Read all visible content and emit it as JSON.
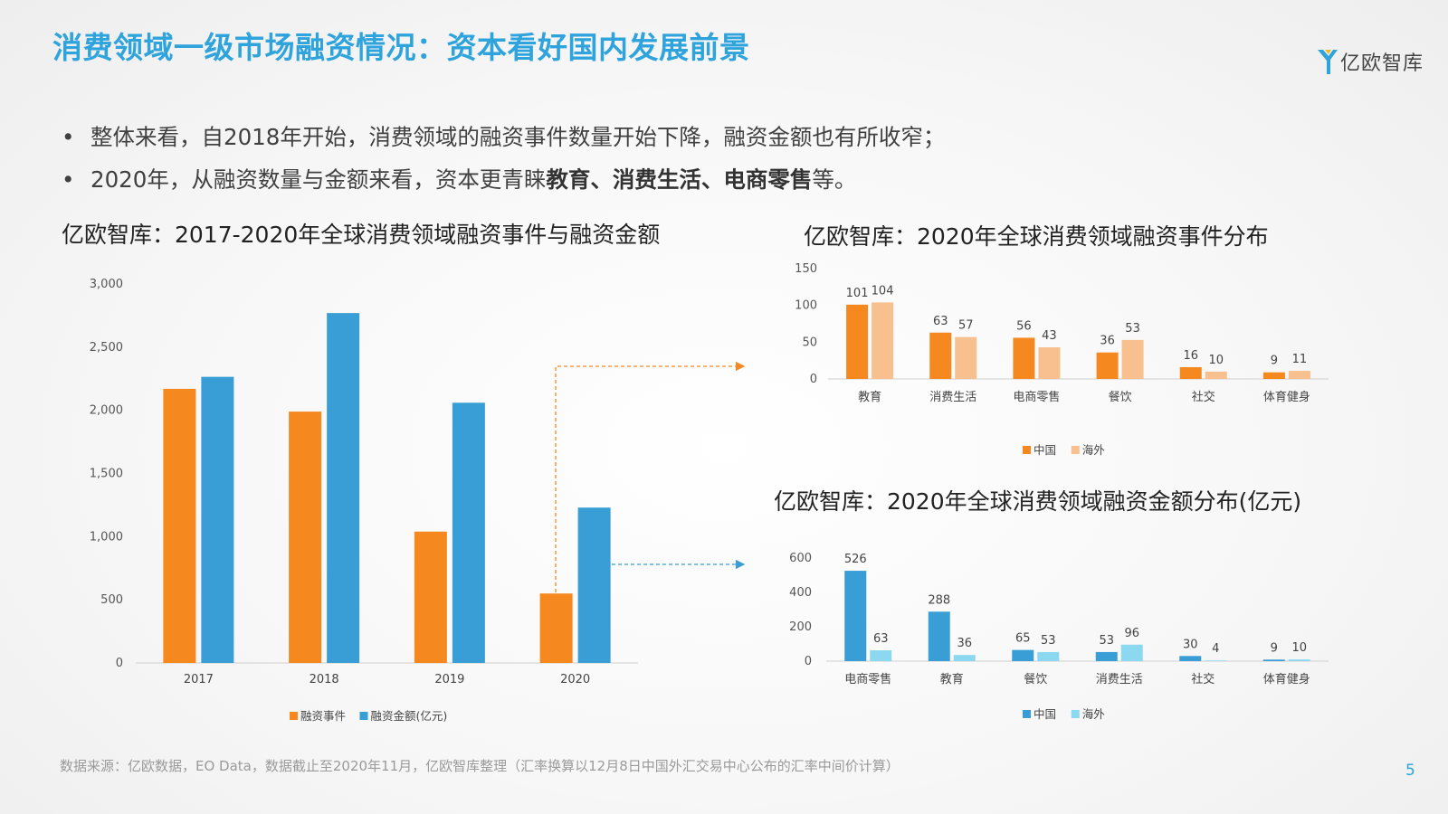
{
  "page": {
    "title": "消费领域一级市场融资情况：资本看好国内发展前景",
    "logo_text": "亿欧智库",
    "bullets": [
      {
        "segments": [
          {
            "text": "整体来看，自2018年开始，消费领域的融资事件数量开始下降，融资金额也有所收窄；",
            "bold": false
          }
        ]
      },
      {
        "segments": [
          {
            "text": "2020年，从融资数量与金额来看，资本更青睐",
            "bold": false
          },
          {
            "text": "教育、消费生活、电商零售",
            "bold": true
          },
          {
            "text": "等。",
            "bold": false
          }
        ]
      }
    ],
    "footnote": "数据来源：亿欧数据，EO Data，数据截止至2020年11月，亿欧智库整理（汇率换算以12月8日中国外汇交易中心公布的汇率中间价计算）",
    "page_number": "5",
    "colors": {
      "accent": "#2ea3dc",
      "orange": "#f5891f",
      "light_orange": "#f8c08e",
      "blue": "#3a9ed6",
      "light_blue": "#8cd8f0"
    }
  },
  "chart_data": [
    {
      "type": "bar",
      "title": "亿欧智库：2017-2020年全球消费领域融资事件与融资金额",
      "categories": [
        "2017",
        "2018",
        "2019",
        "2020"
      ],
      "series": [
        {
          "name": "融资事件",
          "color": "#f5891f",
          "values": [
            2170,
            1990,
            1040,
            550
          ]
        },
        {
          "name": "融资金额(亿元)",
          "color": "#3a9ed6",
          "values": [
            2265,
            2770,
            2060,
            1230
          ]
        }
      ],
      "ylim": [
        0,
        3000
      ],
      "yticks": [
        0,
        500,
        1000,
        1500,
        2000,
        2500,
        3000
      ],
      "ytick_labels": [
        "0",
        "500",
        "1,000",
        "1,500",
        "2,000",
        "2,500",
        "3,000"
      ],
      "show_data_labels": false,
      "legend": "bottom",
      "grid": false
    },
    {
      "type": "bar",
      "title": "亿欧智库：2020年全球消费领域融资事件分布",
      "categories": [
        "教育",
        "消费生活",
        "电商零售",
        "餐饮",
        "社交",
        "体育健身"
      ],
      "series": [
        {
          "name": "中国",
          "color": "#f5891f",
          "values": [
            101,
            63,
            56,
            36,
            16,
            9
          ]
        },
        {
          "name": "海外",
          "color": "#f8c08e",
          "values": [
            104,
            57,
            43,
            53,
            10,
            11
          ]
        }
      ],
      "ylim": [
        0,
        150
      ],
      "yticks": [
        0,
        50,
        100,
        150
      ],
      "ytick_labels": [
        "0",
        "50",
        "100",
        "150"
      ],
      "show_data_labels": true,
      "legend": "bottom",
      "grid": false
    },
    {
      "type": "bar",
      "title": "亿欧智库：2020年全球消费领域融资金额分布(亿元)",
      "categories": [
        "电商零售",
        "教育",
        "餐饮",
        "消费生活",
        "社交",
        "体育健身"
      ],
      "series": [
        {
          "name": "中国",
          "color": "#3a9ed6",
          "values": [
            526,
            288,
            65,
            53,
            30,
            9
          ]
        },
        {
          "name": "海外",
          "color": "#8cd8f0",
          "values": [
            63,
            36,
            53,
            96,
            4,
            10
          ]
        }
      ],
      "ylim": [
        0,
        600
      ],
      "yticks": [
        0,
        200,
        400,
        600
      ],
      "ytick_labels": [
        "0",
        "200",
        "400",
        "600"
      ],
      "show_data_labels": true,
      "legend": "bottom",
      "grid": false
    }
  ]
}
